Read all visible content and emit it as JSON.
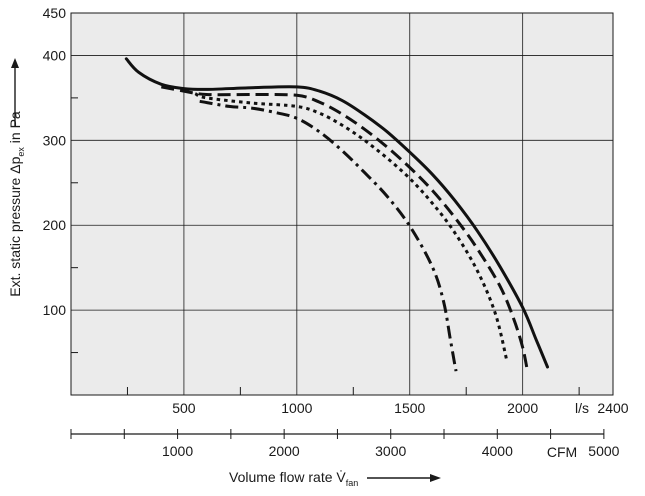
{
  "chart_data": {
    "type": "line",
    "ylabel": {
      "prefix": "Ext. static pressure Δp",
      "sub": "ex",
      "suffix": " in Pa"
    },
    "xlabel": {
      "prefix": "Volume flow rate V̇",
      "sub": "fan"
    },
    "x_unit": "l/s",
    "x2_unit": "CFM",
    "xlim": [
      0,
      2400
    ],
    "ylim": [
      0,
      450
    ],
    "y_ticks": [
      "100",
      "200",
      "300",
      "400",
      "450"
    ],
    "x_ticks": [
      "500",
      "1000",
      "1500",
      "2000",
      "2400"
    ],
    "x2_ticks": [
      "1000",
      "2000",
      "3000",
      "4000",
      "5000"
    ],
    "x2_per_x1": 2.119,
    "grid": true,
    "series": [
      {
        "style": "solid",
        "x": [
          245,
          300,
          400,
          500,
          600,
          800,
          1000,
          1100,
          1200,
          1300,
          1400,
          1500,
          1600,
          1700,
          1800,
          1900,
          2000,
          2060,
          2110
        ],
        "y": [
          396,
          380,
          366,
          361,
          360,
          362,
          363,
          358,
          347,
          330,
          310,
          286,
          260,
          229,
          193,
          151,
          103,
          65,
          33
        ]
      },
      {
        "style": "dashed",
        "x": [
          400,
          500,
          600,
          800,
          1000,
          1100,
          1200,
          1300,
          1400,
          1500,
          1600,
          1700,
          1800,
          1900,
          1960,
          2000,
          2020
        ],
        "y": [
          363,
          358,
          354,
          354,
          353,
          345,
          331,
          313,
          292,
          268,
          241,
          209,
          172,
          128,
          90,
          56,
          30
        ]
      },
      {
        "style": "dotted",
        "x": [
          550,
          600,
          800,
          1000,
          1100,
          1200,
          1300,
          1400,
          1500,
          1600,
          1700,
          1800,
          1880,
          1930
        ],
        "y": [
          355,
          350,
          344,
          340,
          332,
          318,
          300,
          279,
          255,
          226,
          191,
          146,
          95,
          40
        ]
      },
      {
        "style": "dash-dot",
        "x": [
          570,
          700,
          800,
          900,
          1000,
          1100,
          1200,
          1300,
          1400,
          1500,
          1600,
          1650,
          1680,
          1700,
          1705
        ],
        "y": [
          346,
          340,
          338,
          333,
          326,
          310,
          288,
          262,
          234,
          199,
          151,
          110,
          65,
          35,
          28
        ]
      }
    ]
  }
}
